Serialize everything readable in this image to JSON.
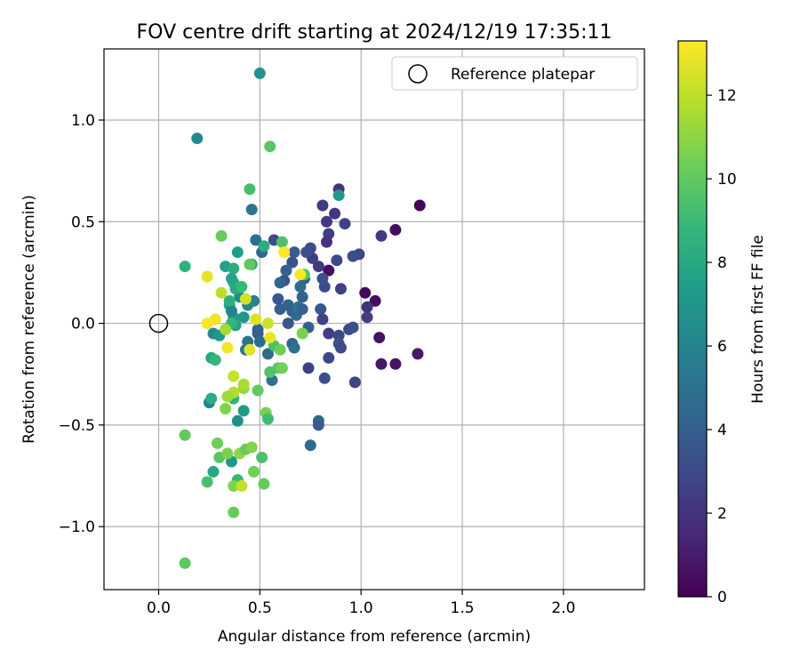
{
  "chart_data": {
    "type": "scatter",
    "title": "FOV centre drift starting at 2024/12/19 17:35:11",
    "xlabel": "Angular distance from reference (arcmin)",
    "ylabel": "Rotation from reference (arcmin)",
    "xlim": [
      -0.27,
      2.4
    ],
    "ylim": [
      -1.31,
      1.35
    ],
    "xticks": [
      0.0,
      0.5,
      1.0,
      1.5,
      2.0
    ],
    "xtick_labels": [
      "0.0",
      "0.5",
      "1.0",
      "1.5",
      "2.0"
    ],
    "yticks": [
      -1.0,
      -0.5,
      0.0,
      0.5,
      1.0
    ],
    "ytick_labels": [
      "−1.0",
      "−0.5",
      "0.0",
      "0.5",
      "1.0"
    ],
    "grid": true,
    "legend": {
      "placement": "top-right",
      "entries": [
        "Reference platepar"
      ]
    },
    "reference_point": {
      "x": 0.0,
      "y": 0.0,
      "marker": "open-circle"
    },
    "colorbar": {
      "label": "Hours from first FF file",
      "colormap": "viridis",
      "range": [
        0,
        13.3
      ],
      "ticks": [
        0,
        2,
        4,
        6,
        8,
        10,
        12
      ],
      "tick_labels": [
        "0",
        "2",
        "4",
        "6",
        "8",
        "10",
        "12"
      ]
    },
    "colormap_stops": [
      "#440154",
      "#482878",
      "#3e4989",
      "#31688e",
      "#26828e",
      "#1f9e89",
      "#35b779",
      "#6ece58",
      "#b5de2b",
      "#fde725"
    ],
    "points": [
      {
        "x": 1.29,
        "y": 0.58,
        "t": 0.2
      },
      {
        "x": 1.17,
        "y": 0.46,
        "t": 0.4
      },
      {
        "x": 1.02,
        "y": 0.15,
        "t": 0.3
      },
      {
        "x": 1.07,
        "y": 0.11,
        "t": 0.5
      },
      {
        "x": 1.09,
        "y": -0.07,
        "t": 0.6
      },
      {
        "x": 1.1,
        "y": -0.2,
        "t": 0.8
      },
      {
        "x": 1.17,
        "y": -0.2,
        "t": 0.7
      },
      {
        "x": 1.28,
        "y": -0.15,
        "t": 0.9
      },
      {
        "x": 0.84,
        "y": 0.26,
        "t": 0.5
      },
      {
        "x": 1.1,
        "y": 0.43,
        "t": 2.3
      },
      {
        "x": 1.03,
        "y": 0.08,
        "t": 2.0
      },
      {
        "x": 1.03,
        "y": 0.03,
        "t": 2.4
      },
      {
        "x": 0.97,
        "y": -0.29,
        "t": 2.7
      },
      {
        "x": 0.89,
        "y": 0.66,
        "t": 2.0
      },
      {
        "x": 0.81,
        "y": 0.58,
        "t": 2.4
      },
      {
        "x": 0.87,
        "y": 0.54,
        "t": 2.1
      },
      {
        "x": 0.92,
        "y": 0.49,
        "t": 2.6
      },
      {
        "x": 0.83,
        "y": 0.5,
        "t": 2.2
      },
      {
        "x": 0.84,
        "y": 0.44,
        "t": 2.5
      },
      {
        "x": 0.83,
        "y": 0.4,
        "t": 1.9
      },
      {
        "x": 0.99,
        "y": 0.34,
        "t": 2.8
      },
      {
        "x": 0.96,
        "y": 0.33,
        "t": 3.2
      },
      {
        "x": 0.88,
        "y": 0.31,
        "t": 2.9
      },
      {
        "x": 0.9,
        "y": 0.17,
        "t": 2.6
      },
      {
        "x": 0.82,
        "y": 0.18,
        "t": 3.1
      },
      {
        "x": 0.81,
        "y": 0.22,
        "t": 3.4
      },
      {
        "x": 0.79,
        "y": 0.28,
        "t": 2.2
      },
      {
        "x": 0.76,
        "y": 0.32,
        "t": 2.5
      },
      {
        "x": 0.75,
        "y": 0.37,
        "t": 3.0
      },
      {
        "x": 0.73,
        "y": 0.35,
        "t": 3.3
      },
      {
        "x": 0.8,
        "y": 0.07,
        "t": 3.6
      },
      {
        "x": 0.81,
        "y": 0.02,
        "t": 2.7
      },
      {
        "x": 0.84,
        "y": -0.05,
        "t": 2.4
      },
      {
        "x": 0.89,
        "y": -0.06,
        "t": 2.8
      },
      {
        "x": 0.94,
        "y": -0.03,
        "t": 3.1
      },
      {
        "x": 0.96,
        "y": -0.02,
        "t": 3.3
      },
      {
        "x": 0.89,
        "y": -0.1,
        "t": 3.6
      },
      {
        "x": 0.9,
        "y": -0.12,
        "t": 3.0
      },
      {
        "x": 0.84,
        "y": -0.17,
        "t": 2.9
      },
      {
        "x": 0.74,
        "y": -0.22,
        "t": 2.6
      },
      {
        "x": 0.82,
        "y": -0.27,
        "t": 3.2
      },
      {
        "x": 0.79,
        "y": -0.48,
        "t": 4.3
      },
      {
        "x": 0.79,
        "y": -0.5,
        "t": 3.9
      },
      {
        "x": 0.75,
        "y": -0.6,
        "t": 4.6
      },
      {
        "x": 0.72,
        "y": 0.22,
        "t": 4.0
      },
      {
        "x": 0.7,
        "y": 0.18,
        "t": 4.7
      },
      {
        "x": 0.71,
        "y": 0.13,
        "t": 4.2
      },
      {
        "x": 0.66,
        "y": 0.3,
        "t": 3.5
      },
      {
        "x": 0.67,
        "y": 0.35,
        "t": 3.8
      },
      {
        "x": 0.63,
        "y": 0.26,
        "t": 4.1
      },
      {
        "x": 0.62,
        "y": 0.21,
        "t": 3.4
      },
      {
        "x": 0.6,
        "y": 0.2,
        "t": 4.4
      },
      {
        "x": 0.57,
        "y": 0.41,
        "t": 3.2
      },
      {
        "x": 0.51,
        "y": 0.35,
        "t": 4.5
      },
      {
        "x": 0.48,
        "y": 0.41,
        "t": 4.8
      },
      {
        "x": 0.59,
        "y": 0.12,
        "t": 3.7
      },
      {
        "x": 0.6,
        "y": 0.07,
        "t": 4.0
      },
      {
        "x": 0.64,
        "y": 0.09,
        "t": 4.3
      },
      {
        "x": 0.66,
        "y": 0.06,
        "t": 3.9
      },
      {
        "x": 0.68,
        "y": 0.04,
        "t": 4.6
      },
      {
        "x": 0.69,
        "y": 0.08,
        "t": 5.0
      },
      {
        "x": 0.71,
        "y": 0.07,
        "t": 4.1
      },
      {
        "x": 0.64,
        "y": 0.0,
        "t": 3.6
      },
      {
        "x": 0.66,
        "y": -0.1,
        "t": 4.4
      },
      {
        "x": 0.67,
        "y": -0.12,
        "t": 4.8
      },
      {
        "x": 0.74,
        "y": -0.02,
        "t": 4.2
      },
      {
        "x": 0.56,
        "y": -0.28,
        "t": 4.9
      },
      {
        "x": 0.54,
        "y": -0.15,
        "t": 4.5
      },
      {
        "x": 0.49,
        "y": -0.03,
        "t": 4.3
      },
      {
        "x": 0.49,
        "y": -0.05,
        "t": 4.0
      },
      {
        "x": 0.5,
        "y": -0.09,
        "t": 4.7
      },
      {
        "x": 0.44,
        "y": -0.09,
        "t": 5.1
      },
      {
        "x": 0.43,
        "y": -0.13,
        "t": 5.3
      },
      {
        "x": 0.46,
        "y": 0.56,
        "t": 5.1
      },
      {
        "x": 0.5,
        "y": 1.23,
        "t": 6.8
      },
      {
        "x": 0.19,
        "y": 0.91,
        "t": 6.3
      },
      {
        "x": 0.89,
        "y": 0.63,
        "t": 7.0
      },
      {
        "x": 0.47,
        "y": 0.11,
        "t": 5.8
      },
      {
        "x": 0.44,
        "y": 0.09,
        "t": 6.2
      },
      {
        "x": 0.4,
        "y": 0.13,
        "t": 6.5
      },
      {
        "x": 0.42,
        "y": 0.03,
        "t": 6.9
      },
      {
        "x": 0.37,
        "y": 0.03,
        "t": 7.2
      },
      {
        "x": 0.35,
        "y": 0.09,
        "t": 7.5
      },
      {
        "x": 0.36,
        "y": 0.06,
        "t": 6.0
      },
      {
        "x": 0.27,
        "y": -0.05,
        "t": 6.4
      },
      {
        "x": 0.3,
        "y": -0.06,
        "t": 7.1
      },
      {
        "x": 0.38,
        "y": -0.01,
        "t": 7.7
      },
      {
        "x": 0.39,
        "y": -0.48,
        "t": 6.6
      },
      {
        "x": 0.42,
        "y": -0.43,
        "t": 7.3
      },
      {
        "x": 0.25,
        "y": -0.39,
        "t": 5.9
      },
      {
        "x": 0.36,
        "y": -0.68,
        "t": 7.0
      },
      {
        "x": 0.39,
        "y": 0.35,
        "t": 7.4
      },
      {
        "x": 0.46,
        "y": 0.29,
        "t": 8.0
      },
      {
        "x": 0.52,
        "y": 0.38,
        "t": 8.3
      },
      {
        "x": 0.37,
        "y": 0.2,
        "t": 8.6
      },
      {
        "x": 0.36,
        "y": 0.22,
        "t": 7.8
      },
      {
        "x": 0.38,
        "y": 0.17,
        "t": 8.1
      },
      {
        "x": 0.41,
        "y": 0.18,
        "t": 8.9
      },
      {
        "x": 0.35,
        "y": 0.11,
        "t": 8.4
      },
      {
        "x": 0.36,
        "y": 0.0,
        "t": 8.7
      },
      {
        "x": 0.33,
        "y": 0.28,
        "t": 7.6
      },
      {
        "x": 0.37,
        "y": 0.27,
        "t": 8.2
      },
      {
        "x": 0.13,
        "y": 0.28,
        "t": 8.5
      },
      {
        "x": 0.26,
        "y": -0.17,
        "t": 7.9
      },
      {
        "x": 0.28,
        "y": -0.18,
        "t": 8.8
      },
      {
        "x": 0.26,
        "y": -0.37,
        "t": 8.3
      },
      {
        "x": 0.37,
        "y": -0.37,
        "t": 8.6
      },
      {
        "x": 0.27,
        "y": -0.73,
        "t": 8.0
      },
      {
        "x": 0.39,
        "y": -0.77,
        "t": 8.9
      },
      {
        "x": 0.45,
        "y": 0.66,
        "t": 9.3
      },
      {
        "x": 0.55,
        "y": 0.87,
        "t": 9.8
      },
      {
        "x": 0.31,
        "y": 0.43,
        "t": 10.2
      },
      {
        "x": 0.61,
        "y": 0.4,
        "t": 9.5
      },
      {
        "x": 0.45,
        "y": 0.29,
        "t": 10.0
      },
      {
        "x": 0.72,
        "y": 0.24,
        "t": 9.7
      },
      {
        "x": 0.57,
        "y": -0.11,
        "t": 9.4
      },
      {
        "x": 0.6,
        "y": -0.13,
        "t": 10.3
      },
      {
        "x": 0.71,
        "y": -0.05,
        "t": 10.6
      },
      {
        "x": 0.59,
        "y": -0.22,
        "t": 9.9
      },
      {
        "x": 0.61,
        "y": -0.22,
        "t": 10.4
      },
      {
        "x": 0.55,
        "y": -0.24,
        "t": 9.6
      },
      {
        "x": 0.49,
        "y": -0.33,
        "t": 10.1
      },
      {
        "x": 0.53,
        "y": -0.44,
        "t": 10.5
      },
      {
        "x": 0.54,
        "y": -0.47,
        "t": 9.2
      },
      {
        "x": 0.33,
        "y": -0.42,
        "t": 10.7
      },
      {
        "x": 0.13,
        "y": -0.55,
        "t": 10.0
      },
      {
        "x": 0.29,
        "y": -0.59,
        "t": 10.3
      },
      {
        "x": 0.3,
        "y": -0.66,
        "t": 9.8
      },
      {
        "x": 0.34,
        "y": -0.64,
        "t": 10.6
      },
      {
        "x": 0.4,
        "y": -0.64,
        "t": 11.0
      },
      {
        "x": 0.43,
        "y": -0.62,
        "t": 10.2
      },
      {
        "x": 0.46,
        "y": -0.61,
        "t": 10.8
      },
      {
        "x": 0.51,
        "y": -0.66,
        "t": 9.5
      },
      {
        "x": 0.47,
        "y": -0.73,
        "t": 10.4
      },
      {
        "x": 0.52,
        "y": -0.79,
        "t": 10.1
      },
      {
        "x": 0.24,
        "y": -0.78,
        "t": 9.4
      },
      {
        "x": 0.37,
        "y": -0.8,
        "t": 10.7
      },
      {
        "x": 0.37,
        "y": -0.93,
        "t": 10.2
      },
      {
        "x": 0.13,
        "y": -1.18,
        "t": 9.9
      },
      {
        "x": 0.41,
        "y": -0.8,
        "t": 12.1
      },
      {
        "x": 0.42,
        "y": -0.32,
        "t": 11.2
      },
      {
        "x": 0.42,
        "y": -0.3,
        "t": 11.6
      },
      {
        "x": 0.37,
        "y": -0.34,
        "t": 11.8
      },
      {
        "x": 0.37,
        "y": -0.26,
        "t": 12.2
      },
      {
        "x": 0.34,
        "y": -0.36,
        "t": 11.4
      },
      {
        "x": 0.31,
        "y": 0.15,
        "t": 12.0
      },
      {
        "x": 0.43,
        "y": 0.12,
        "t": 12.4
      },
      {
        "x": 0.24,
        "y": 0.23,
        "t": 12.8
      },
      {
        "x": 0.33,
        "y": -0.03,
        "t": 11.5
      },
      {
        "x": 0.54,
        "y": 0.0,
        "t": 12.3
      },
      {
        "x": 0.55,
        "y": -0.07,
        "t": 12.9
      },
      {
        "x": 0.28,
        "y": 0.02,
        "t": 13.0
      },
      {
        "x": 0.48,
        "y": 0.02,
        "t": 12.6
      },
      {
        "x": 0.45,
        "y": -0.13,
        "t": 12.7
      },
      {
        "x": 0.34,
        "y": -0.12,
        "t": 13.1
      },
      {
        "x": 0.24,
        "y": 0.0,
        "t": 13.2
      },
      {
        "x": 0.62,
        "y": 0.35,
        "t": 13.3
      },
      {
        "x": 0.7,
        "y": 0.24,
        "t": 13.2
      }
    ]
  }
}
